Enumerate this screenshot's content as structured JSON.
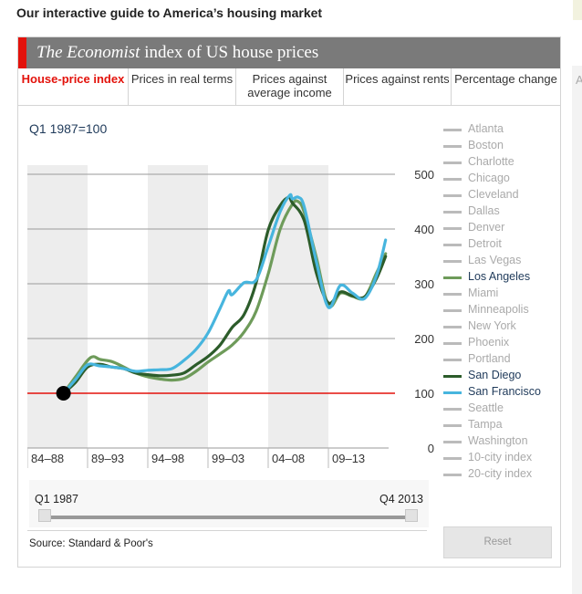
{
  "page": {
    "headline": "Our interactive guide to America’s housing market"
  },
  "widget": {
    "title_italic": "The Economist",
    "title_rest": " index of US house prices",
    "tabs": [
      {
        "label": "House-price index",
        "active": true
      },
      {
        "label": "Prices in real terms",
        "active": false
      },
      {
        "label": "Prices against average income",
        "active": false
      },
      {
        "label": "Prices against rents",
        "active": false
      },
      {
        "label": "Percentage change",
        "active": false
      }
    ],
    "reference_note": "Q1 1987=100",
    "slider": {
      "from": "Q1 1987",
      "to": "Q4 2013",
      "range": [
        0,
        1
      ]
    },
    "source": "Source: Standard & Poor's",
    "reset_label": "Reset",
    "side_letter": "A"
  },
  "legend": [
    {
      "label": "Atlanta",
      "selected": false
    },
    {
      "label": "Boston",
      "selected": false
    },
    {
      "label": "Charlotte",
      "selected": false
    },
    {
      "label": "Chicago",
      "selected": false
    },
    {
      "label": "Cleveland",
      "selected": false
    },
    {
      "label": "Dallas",
      "selected": false
    },
    {
      "label": "Denver",
      "selected": false
    },
    {
      "label": "Detroit",
      "selected": false
    },
    {
      "label": "Las Vegas",
      "selected": false
    },
    {
      "label": "Los Angeles",
      "selected": true,
      "color": "#6e9b5a"
    },
    {
      "label": "Miami",
      "selected": false
    },
    {
      "label": "Minneapolis",
      "selected": false
    },
    {
      "label": "New York",
      "selected": false
    },
    {
      "label": "Phoenix",
      "selected": false
    },
    {
      "label": "Portland",
      "selected": false
    },
    {
      "label": "San Diego",
      "selected": true,
      "color": "#2c5c2a"
    },
    {
      "label": "San Francisco",
      "selected": true,
      "color": "#47b5de"
    },
    {
      "label": "Seattle",
      "selected": false
    },
    {
      "label": "Tampa",
      "selected": false
    },
    {
      "label": "Washington",
      "selected": false
    },
    {
      "label": "10-city index",
      "selected": false
    },
    {
      "label": "20-city index",
      "selected": false
    }
  ],
  "colors": {
    "accent_red": "#e3120b",
    "baseline": "#e3120b",
    "legend_off": "#bbbbbb",
    "band": "#ededed"
  },
  "chart_data": {
    "type": "line",
    "title": "",
    "xlabel": "",
    "ylabel": "",
    "xlim": [
      1984,
      2014
    ],
    "ylim": [
      0,
      500
    ],
    "y_ticks": [
      0,
      100,
      200,
      300,
      400,
      500
    ],
    "x_bands": [
      {
        "label": "84–88",
        "from": 1984,
        "to": 1989,
        "shaded": true
      },
      {
        "label": "89–93",
        "from": 1989,
        "to": 1994,
        "shaded": false
      },
      {
        "label": "94–98",
        "from": 1994,
        "to": 1999,
        "shaded": true
      },
      {
        "label": "99–03",
        "from": 1999,
        "to": 2004,
        "shaded": false
      },
      {
        "label": "04–08",
        "from": 2004,
        "to": 2009,
        "shaded": true
      },
      {
        "label": "09–13",
        "from": 2009,
        "to": 2014,
        "shaded": false
      }
    ],
    "grid": true,
    "baseline_value": 100,
    "start_marker": {
      "x": 1987,
      "y": 100
    },
    "series": [
      {
        "name": "Los Angeles",
        "color": "#6e9b5a",
        "x": [
          1987,
          1988,
          1989,
          1989.5,
          1990,
          1991,
          1992,
          1993,
          1994,
          1995,
          1996,
          1997,
          1998,
          1999,
          2000,
          2001,
          2002,
          2003,
          2004,
          2005,
          2006,
          2006.5,
          2007,
          2008,
          2009,
          2010,
          2011,
          2012,
          2013,
          2013.75
        ],
        "y": [
          100,
          130,
          160,
          167,
          162,
          158,
          148,
          137,
          130,
          126,
          124,
          127,
          140,
          157,
          172,
          188,
          212,
          250,
          318,
          400,
          445,
          450,
          430,
          348,
          260,
          283,
          277,
          275,
          320,
          355
        ]
      },
      {
        "name": "San Diego",
        "color": "#2c5c2a",
        "x": [
          1987,
          1988,
          1989,
          1990,
          1991,
          1992,
          1993,
          1994,
          1995,
          1996,
          1997,
          1998,
          1999,
          2000,
          2001,
          2002,
          2003,
          2004,
          2005,
          2005.7,
          2006,
          2007,
          2008,
          2009,
          2010,
          2011,
          2012,
          2013,
          2013.75
        ],
        "y": [
          100,
          120,
          148,
          153,
          148,
          145,
          137,
          134,
          132,
          133,
          137,
          152,
          167,
          188,
          220,
          244,
          302,
          398,
          443,
          458,
          448,
          415,
          320,
          265,
          285,
          278,
          276,
          310,
          350
        ]
      },
      {
        "name": "San Francisco",
        "color": "#47b5de",
        "x": [
          1987,
          1988,
          1989,
          1990,
          1991,
          1992,
          1993,
          1994,
          1995,
          1996,
          1997,
          1998,
          1999,
          2000,
          2000.7,
          2001,
          2002,
          2003,
          2004,
          2005,
          2005.8,
          2006,
          2006.5,
          2007,
          2008,
          2009,
          2010,
          2011,
          2012,
          2013,
          2013.75
        ],
        "y": [
          100,
          125,
          152,
          150,
          148,
          145,
          140,
          142,
          143,
          145,
          160,
          180,
          210,
          255,
          287,
          280,
          302,
          307,
          368,
          432,
          462,
          455,
          458,
          440,
          340,
          257,
          297,
          283,
          273,
          315,
          380
        ]
      }
    ]
  }
}
